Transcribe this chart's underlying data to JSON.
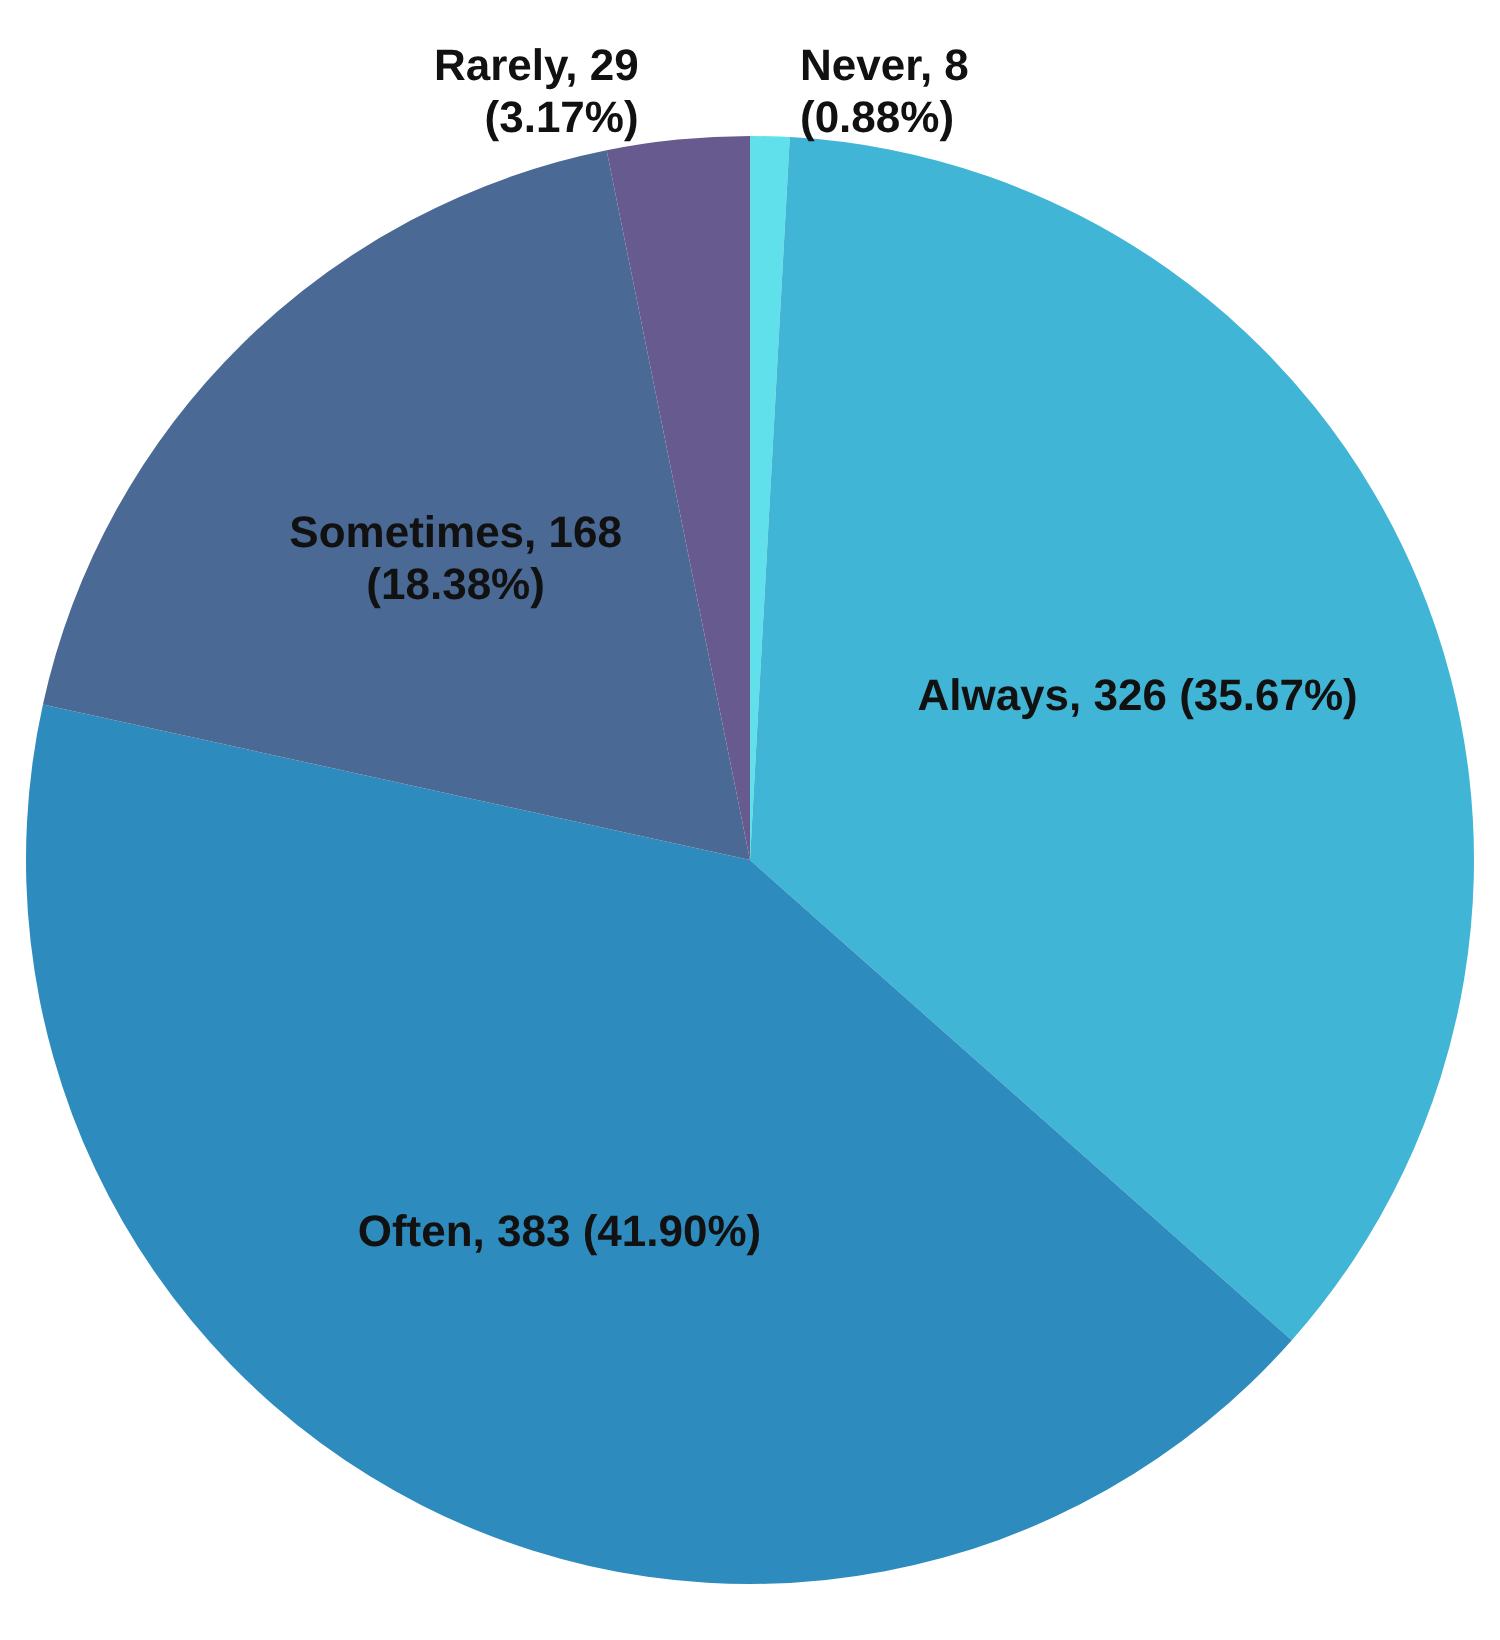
{
  "chart_data": {
    "type": "pie",
    "categories": [
      "Never",
      "Always",
      "Often",
      "Sometimes",
      "Rarely"
    ],
    "values": [
      8,
      326,
      383,
      168,
      29
    ],
    "colors": [
      "#5fe0ea",
      "#41b5d6",
      "#2e8bbd",
      "#4a6994",
      "#675a8f"
    ],
    "value_labels": [
      "8 (0.88%)",
      "326 (35.67%)",
      "383 (41.90%)",
      "168 (18.38%)",
      "29 (3.17%)"
    ]
  }
}
